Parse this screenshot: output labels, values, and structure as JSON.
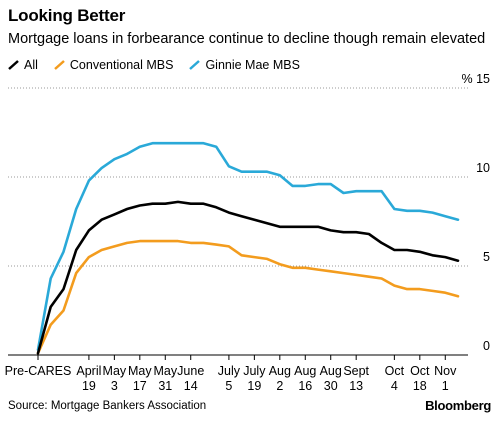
{
  "header": {
    "title": "Looking Better",
    "subtitle": "Mortgage loans in forbearance continue to decline though remain elevated"
  },
  "footer": {
    "source": "Source: Mortgage Bankers Association",
    "brand": "Bloomberg"
  },
  "chart_data": {
    "type": "line",
    "title": "Looking Better",
    "subtitle": "Mortgage loans in forbearance continue to decline though remain elevated",
    "xlabel": "",
    "ylabel": "",
    "y_unit_label": "% 15",
    "ylim": [
      0,
      15
    ],
    "yticks": [
      0,
      5,
      10
    ],
    "grid": "horizontal dotted",
    "legend_position": "top-left",
    "x_ticks": [
      {
        "i": 0,
        "line1": "Pre-CARES",
        "line2": ""
      },
      {
        "i": 4,
        "line1": "April",
        "line2": "19"
      },
      {
        "i": 6,
        "line1": "May",
        "line2": "3"
      },
      {
        "i": 8,
        "line1": "May",
        "line2": "17"
      },
      {
        "i": 10,
        "line1": "May",
        "line2": "31"
      },
      {
        "i": 12,
        "line1": "June",
        "line2": "14"
      },
      {
        "i": 15,
        "line1": "July",
        "line2": "5"
      },
      {
        "i": 17,
        "line1": "July",
        "line2": "19"
      },
      {
        "i": 19,
        "line1": "Aug",
        "line2": "2"
      },
      {
        "i": 21,
        "line1": "Aug",
        "line2": "16"
      },
      {
        "i": 23,
        "line1": "Aug",
        "line2": "30"
      },
      {
        "i": 25,
        "line1": "Sept",
        "line2": "13"
      },
      {
        "i": 28,
        "line1": "Oct",
        "line2": "4"
      },
      {
        "i": 30,
        "line1": "Oct",
        "line2": "18"
      },
      {
        "i": 32,
        "line1": "Nov",
        "line2": "1"
      }
    ],
    "series": [
      {
        "name": "All",
        "color": "#000000",
        "values": [
          0.1,
          2.7,
          3.7,
          5.9,
          7.0,
          7.6,
          7.9,
          8.2,
          8.4,
          8.5,
          8.5,
          8.6,
          8.5,
          8.5,
          8.3,
          8.0,
          7.8,
          7.6,
          7.4,
          7.2,
          7.2,
          7.2,
          7.2,
          7.0,
          6.9,
          6.9,
          6.8,
          6.3,
          5.9,
          5.9,
          5.8,
          5.6,
          5.5,
          5.3
        ]
      },
      {
        "name": "Conventional MBS",
        "color": "#f39c1e",
        "values": [
          0.1,
          1.7,
          2.5,
          4.6,
          5.5,
          5.9,
          6.1,
          6.3,
          6.4,
          6.4,
          6.4,
          6.4,
          6.3,
          6.3,
          6.2,
          6.1,
          5.6,
          5.5,
          5.4,
          5.1,
          4.9,
          4.9,
          4.8,
          4.7,
          4.6,
          4.5,
          4.4,
          4.3,
          3.9,
          3.7,
          3.7,
          3.6,
          3.5,
          3.3
        ]
      },
      {
        "name": "Ginnie Mae MBS",
        "color": "#2aa9d8",
        "values": [
          0.3,
          4.3,
          5.8,
          8.2,
          9.8,
          10.5,
          11.0,
          11.3,
          11.7,
          11.9,
          11.9,
          11.9,
          11.9,
          11.9,
          11.7,
          10.6,
          10.3,
          10.3,
          10.3,
          10.1,
          9.5,
          9.5,
          9.6,
          9.6,
          9.1,
          9.2,
          9.2,
          9.2,
          8.2,
          8.1,
          8.1,
          8.0,
          7.8,
          7.6
        ]
      }
    ]
  }
}
